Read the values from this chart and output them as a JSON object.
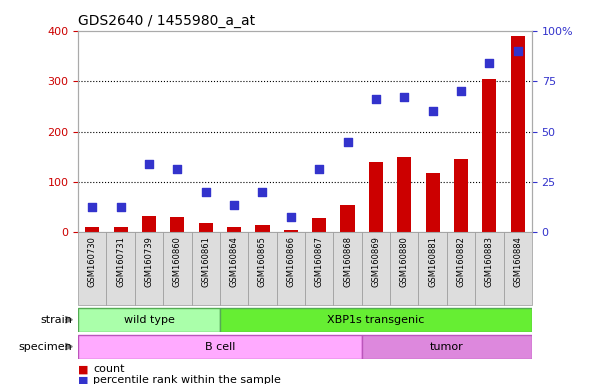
{
  "title": "GDS2640 / 1455980_a_at",
  "samples": [
    "GSM160730",
    "GSM160731",
    "GSM160739",
    "GSM160860",
    "GSM160861",
    "GSM160864",
    "GSM160865",
    "GSM160866",
    "GSM160867",
    "GSM160868",
    "GSM160869",
    "GSM160880",
    "GSM160881",
    "GSM160882",
    "GSM160883",
    "GSM160884"
  ],
  "counts": [
    10,
    10,
    32,
    30,
    18,
    10,
    14,
    5,
    28,
    55,
    140,
    150,
    118,
    145,
    305,
    390
  ],
  "percentiles": [
    50,
    50,
    135,
    125,
    80,
    55,
    80,
    30,
    125,
    180,
    265,
    268,
    240,
    280,
    335,
    360
  ],
  "ylim_left": [
    0,
    400
  ],
  "yticks_left": [
    0,
    100,
    200,
    300,
    400
  ],
  "ytick_labels_right": [
    "0",
    "25",
    "50",
    "75",
    "100%"
  ],
  "bar_color": "#cc0000",
  "dot_color": "#3333cc",
  "strain_groups": [
    {
      "label": "wild type",
      "start": 0,
      "end": 4,
      "color": "#aaffaa"
    },
    {
      "label": "XBP1s transgenic",
      "start": 5,
      "end": 15,
      "color": "#66ee33"
    }
  ],
  "specimen_groups": [
    {
      "label": "B cell",
      "start": 0,
      "end": 9,
      "color": "#ffaaff"
    },
    {
      "label": "tumor",
      "start": 10,
      "end": 15,
      "color": "#dd88dd"
    }
  ],
  "strain_label": "strain",
  "specimen_label": "specimen",
  "legend_count_label": "count",
  "legend_pct_label": "percentile rank within the sample",
  "background_color": "#ffffff",
  "bar_width": 0.5,
  "dot_size": 30
}
